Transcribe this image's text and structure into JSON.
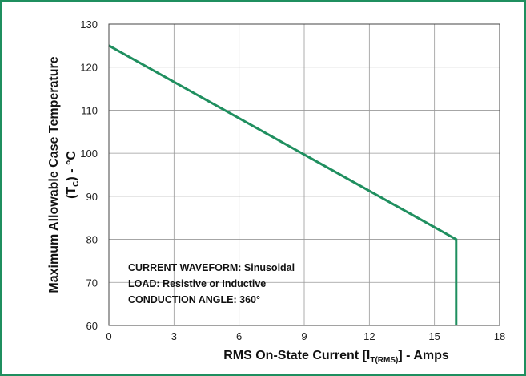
{
  "chart_data": {
    "type": "line",
    "title": "",
    "xlabel": {
      "main": "RMS On-State Current [I",
      "sub": "T(RMS)",
      "tail": "] - Amps"
    },
    "ylabel": {
      "line1": "Maximum Allowable Case Temperature",
      "line2_pre": "(T",
      "line2_sub": "C",
      "line2_post": ") - °C"
    },
    "xlim": [
      0,
      18
    ],
    "ylim": [
      60,
      130
    ],
    "xticks": [
      0,
      3,
      6,
      9,
      12,
      15,
      18
    ],
    "yticks": [
      60,
      70,
      80,
      90,
      100,
      110,
      120,
      130
    ],
    "grid": true,
    "series": [
      {
        "x": [
          0,
          16,
          16
        ],
        "y": [
          125,
          80,
          60
        ]
      }
    ],
    "annotations": [
      "CURRENT WAVEFORM: Sinusoidal",
      "LOAD: Resistive or Inductive",
      "CONDUCTION ANGLE: 360°"
    ],
    "colors": {
      "line": "#1f8f5f",
      "frame": "#1f8f5f",
      "grid": "#999999"
    }
  }
}
